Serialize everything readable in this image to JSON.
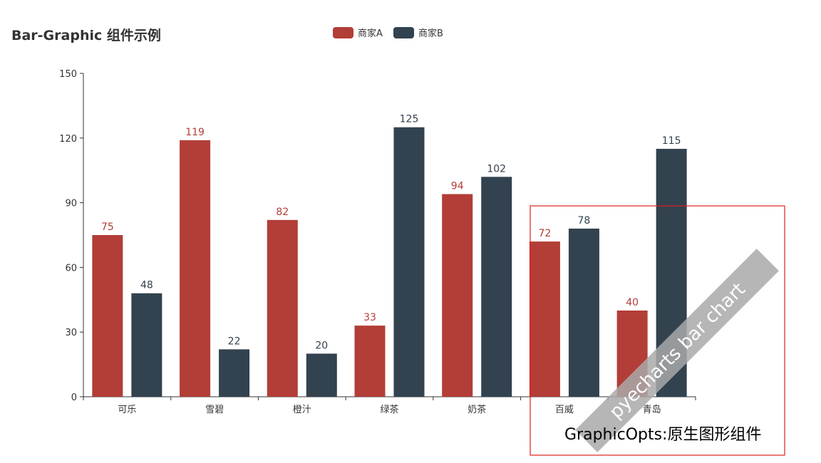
{
  "chart_data": {
    "type": "bar",
    "title": "Bar-Graphic 组件示例",
    "categories": [
      "可乐",
      "雪碧",
      "橙汁",
      "绿茶",
      "奶茶",
      "百威",
      "青岛"
    ],
    "series": [
      {
        "name": "商家A",
        "color": "#b33d37",
        "values": [
          75,
          119,
          82,
          33,
          94,
          72,
          40
        ]
      },
      {
        "name": "商家B",
        "color": "#32424f",
        "values": [
          48,
          22,
          20,
          125,
          102,
          78,
          115
        ]
      }
    ],
    "ylim": [
      0,
      150
    ],
    "yticks": [
      0,
      30,
      60,
      90,
      120,
      150
    ],
    "legend_position": "top-center",
    "grid": false
  },
  "graphic": {
    "box_text": "GraphicOpts:原生图形组件",
    "banner_text": "pyecharts bar chart",
    "box_color": "#e02020",
    "banner_color": "#a9a9a9"
  }
}
